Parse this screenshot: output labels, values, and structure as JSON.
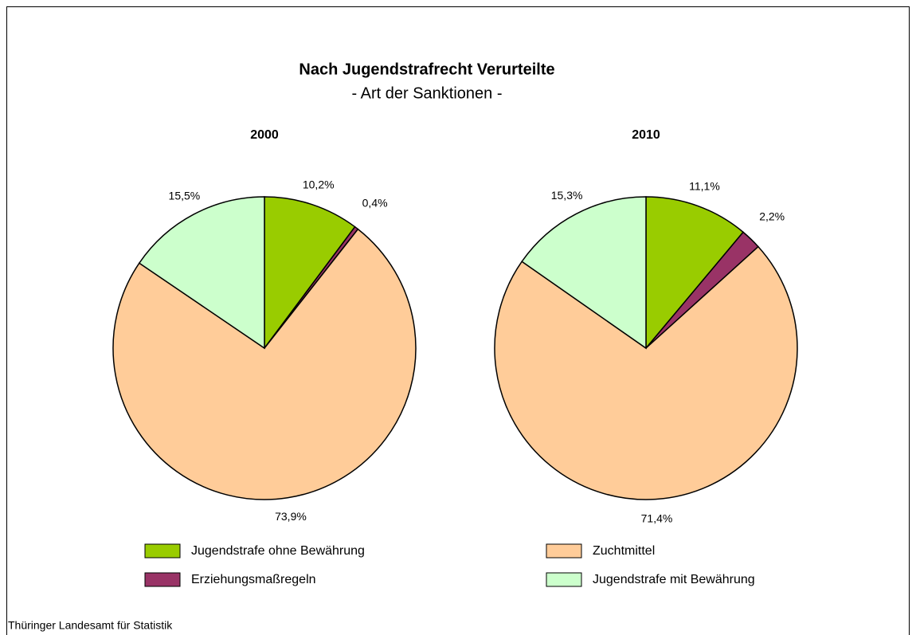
{
  "title": "Nach Jugendstrafrecht Verurteilte",
  "subtitle": "- Art der Sanktionen -",
  "source": "Thüringer Landesamt für Statistik",
  "chart_data": [
    {
      "type": "pie",
      "title": "2000",
      "categories": [
        "Jugendstrafe ohne Bewährung",
        "Erziehungsmaßregeln",
        "Zuchtmittel",
        "Jugendstrafe mit Bewährung"
      ],
      "values": [
        10.2,
        0.4,
        73.9,
        15.5
      ],
      "value_labels": [
        "10,2%",
        "0,4%",
        "73,9%",
        "15,5%"
      ],
      "colors": [
        "#99cc00",
        "#993366",
        "#ffcc99",
        "#ccffcc"
      ]
    },
    {
      "type": "pie",
      "title": "2010",
      "categories": [
        "Jugendstrafe ohne Bewährung",
        "Erziehungsmaßregeln",
        "Zuchtmittel",
        "Jugendstrafe mit Bewährung"
      ],
      "values": [
        11.1,
        2.2,
        71.4,
        15.3
      ],
      "value_labels": [
        "11,1%",
        "2,2%",
        "71,4%",
        "15,3%"
      ],
      "colors": [
        "#99cc00",
        "#993366",
        "#ffcc99",
        "#ccffcc"
      ]
    }
  ]
}
